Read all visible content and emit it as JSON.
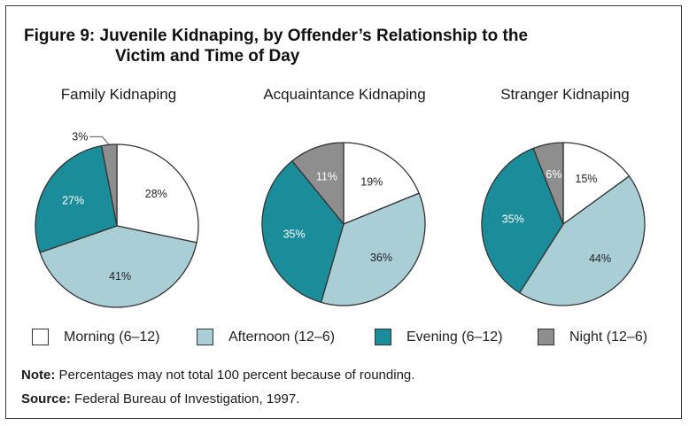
{
  "title_line1": "Figure 9:  Juvenile Kidnaping, by Offender’s Relationship to the",
  "title_line2": "Victim and Time of Day",
  "colors": {
    "morning": "#ffffff",
    "afternoon": "#a9ced6",
    "evening": "#1a8c9a",
    "night": "#8e8e8e",
    "outline": "#333333"
  },
  "legend": [
    {
      "label": "Morning (6–12)",
      "color_key": "morning"
    },
    {
      "label": "Afternoon (12–6)",
      "color_key": "afternoon"
    },
    {
      "label": "Evening (6–12)",
      "color_key": "evening"
    },
    {
      "label": "Night (12–6)",
      "color_key": "night"
    }
  ],
  "note_label": "Note:",
  "note_text": " Percentages may not total 100 percent because of rounding.",
  "source_label": "Source:",
  "source_text": " Federal Bureau of Investigation, 1997.",
  "chart_data": [
    {
      "type": "pie",
      "title": "Family Kidnaping",
      "categories": [
        "Morning (6–12)",
        "Afternoon (12–6)",
        "Evening (6–12)",
        "Night (12–6)"
      ],
      "values": [
        28,
        41,
        27,
        3
      ],
      "labels": [
        "28%",
        "41%",
        "27%",
        "3%"
      ]
    },
    {
      "type": "pie",
      "title": "Acquaintance Kidnaping",
      "categories": [
        "Morning (6–12)",
        "Afternoon (12–6)",
        "Evening (6–12)",
        "Night (12–6)"
      ],
      "values": [
        19,
        36,
        35,
        11
      ],
      "labels": [
        "19%",
        "36%",
        "35%",
        "11%"
      ]
    },
    {
      "type": "pie",
      "title": "Stranger Kidnaping",
      "categories": [
        "Morning (6–12)",
        "Afternoon (12–6)",
        "Evening (6–12)",
        "Night (12–6)"
      ],
      "values": [
        15,
        44,
        35,
        6
      ],
      "labels": [
        "15%",
        "44%",
        "35%",
        "6%"
      ]
    }
  ]
}
